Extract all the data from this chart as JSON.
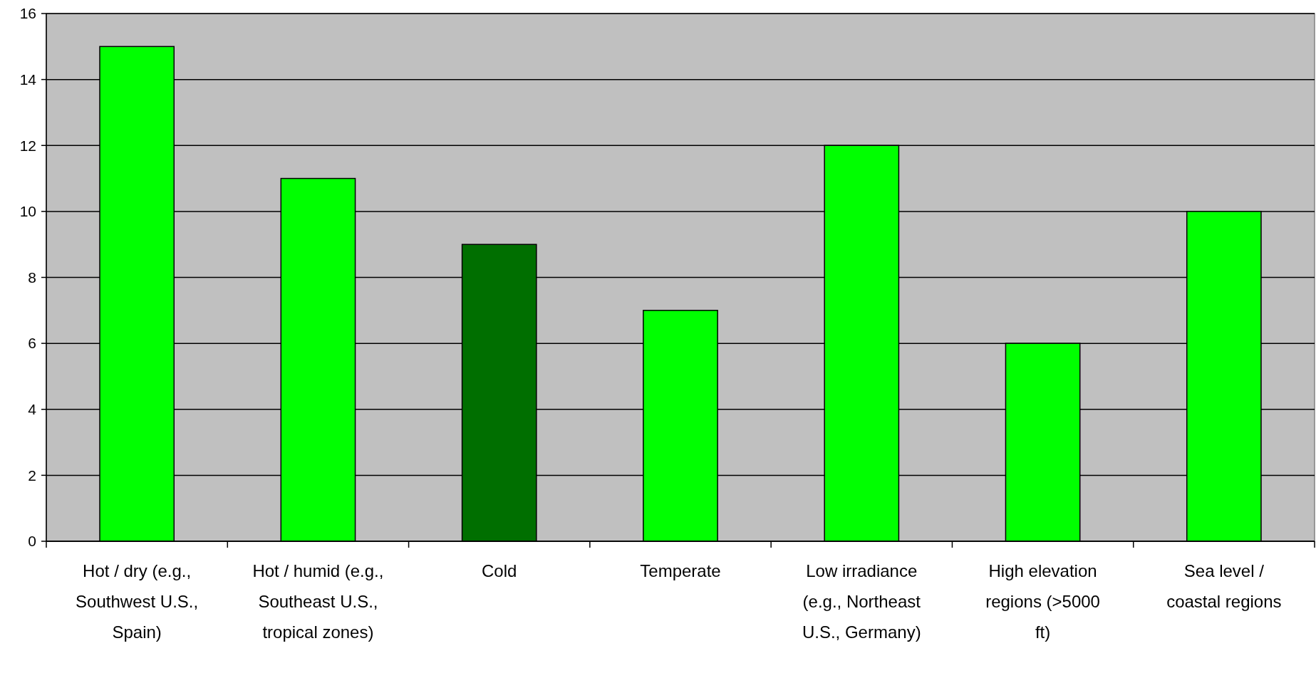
{
  "chart_data": {
    "type": "bar",
    "categories": [
      "Hot / dry (e.g., Southwest U.S., Spain)",
      "Hot / humid (e.g., Southeast U.S., tropical zones)",
      "Cold",
      "Temperate",
      "Low irradiance (e.g., Northeast U.S., Germany)",
      "High elevation regions (>5000 ft)",
      "Sea level / coastal regions"
    ],
    "values": [
      15,
      11,
      9,
      7,
      12,
      6,
      10
    ],
    "colors": [
      "#00ff00",
      "#00ff00",
      "#006f00",
      "#00ff00",
      "#00ff00",
      "#00ff00",
      "#00ff00"
    ],
    "ylim": [
      0,
      16
    ],
    "yticks": [
      0,
      2,
      4,
      6,
      8,
      10,
      12,
      14,
      16
    ],
    "grid": "y"
  }
}
